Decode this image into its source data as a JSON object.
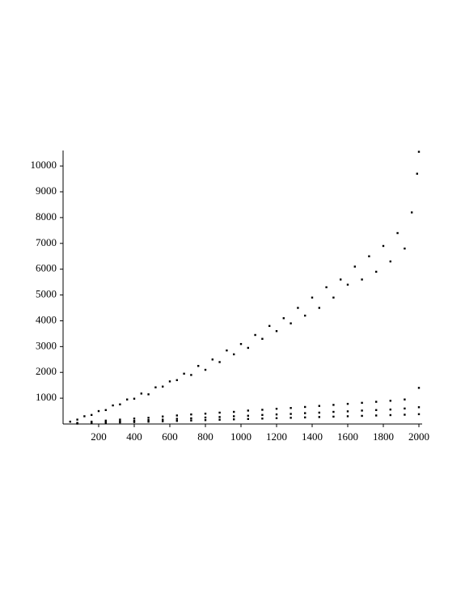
{
  "chart_data": {
    "type": "scatter",
    "xlim": [
      0,
      2000
    ],
    "xticks": [
      200,
      400,
      600,
      800,
      1000,
      1200,
      1400,
      1600,
      1800,
      2000
    ],
    "ylim": [
      0,
      10600
    ],
    "yticks": [
      1000,
      2000,
      3000,
      4000,
      5000,
      6000,
      7000,
      8000,
      9000,
      10000
    ],
    "grid": false,
    "series": [
      {
        "color": "#000000",
        "x": [
          40,
          80,
          120,
          160,
          200,
          240,
          280,
          320,
          360,
          400,
          440,
          480,
          520,
          560,
          600,
          640,
          680,
          720,
          760,
          800,
          840,
          880,
          920,
          960,
          1000,
          1040,
          1080,
          1120,
          1160,
          1200,
          1240,
          1280,
          1320,
          1360,
          1400,
          1440,
          1480,
          1520,
          1560,
          1600,
          1640,
          1680,
          1720,
          1760,
          1800,
          1840,
          1880,
          1920,
          1960,
          1990,
          2000
        ],
        "values": [
          90,
          170,
          300,
          350,
          500,
          540,
          720,
          760,
          950,
          980,
          1180,
          1150,
          1420,
          1450,
          1650,
          1700,
          1950,
          1900,
          2250,
          2100,
          2500,
          2400,
          2850,
          2700,
          3100,
          2950,
          3450,
          3300,
          3800,
          3600,
          4100,
          3900,
          4500,
          4200,
          4900,
          4500,
          5300,
          4900,
          5600,
          5400,
          6100,
          5600,
          6500,
          5900,
          6900,
          6300,
          7400,
          6800,
          8200,
          9700,
          10550
        ]
      },
      {
        "color": "#000000",
        "x": [
          80,
          160,
          240,
          320,
          400,
          480,
          560,
          640,
          720,
          800,
          880,
          960,
          1040,
          1120,
          1200,
          1280,
          1360,
          1440,
          1520,
          1600,
          1680,
          1760,
          1840,
          1920,
          2000
        ],
        "values": [
          40,
          90,
          130,
          170,
          210,
          240,
          290,
          330,
          370,
          400,
          440,
          470,
          520,
          550,
          590,
          620,
          660,
          700,
          740,
          780,
          820,
          860,
          900,
          950,
          1400
        ]
      },
      {
        "color": "#000000",
        "x": [
          80,
          160,
          240,
          320,
          400,
          480,
          560,
          640,
          720,
          800,
          880,
          960,
          1040,
          1120,
          1200,
          1280,
          1360,
          1440,
          1520,
          1600,
          1680,
          1760,
          1840,
          1920,
          2000
        ],
        "values": [
          25,
          50,
          75,
          100,
          120,
          150,
          170,
          200,
          220,
          250,
          270,
          300,
          320,
          350,
          370,
          390,
          420,
          440,
          470,
          490,
          520,
          540,
          560,
          600,
          650
        ]
      },
      {
        "color": "#000000",
        "x": [
          80,
          160,
          240,
          320,
          400,
          480,
          560,
          640,
          720,
          800,
          880,
          960,
          1040,
          1120,
          1200,
          1280,
          1360,
          1440,
          1520,
          1600,
          1680,
          1760,
          1840,
          1920,
          2000
        ],
        "values": [
          15,
          30,
          45,
          60,
          75,
          90,
          105,
          120,
          135,
          150,
          165,
          180,
          195,
          210,
          225,
          240,
          255,
          270,
          285,
          300,
          315,
          330,
          345,
          360,
          380
        ]
      }
    ]
  }
}
